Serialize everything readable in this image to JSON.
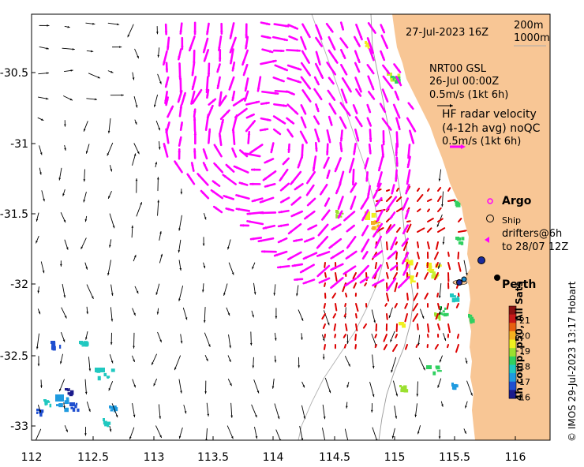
{
  "map": {
    "x_ticks": [
      "112",
      "112.5",
      "113",
      "113.5",
      "114",
      "114.5",
      "115",
      "115.5",
      "116"
    ],
    "y_ticks": [
      "-30.5",
      "-31",
      "-31.5",
      "-32",
      "-32.5",
      "-33"
    ],
    "xlim": [
      112,
      116.3
    ],
    "ylim": [
      -33.1,
      -30.1
    ],
    "land_color": "#f8c695",
    "hf_vector_color": "#ff00ff",
    "model_vector_color": "#000000",
    "coastal_vector_color": "#dd0000"
  },
  "legend": {
    "date": "27-Jul-2023 16Z",
    "depth_200": "200m",
    "depth_1000": "1000m",
    "model_name": "NRT00 GSL",
    "model_date": "26-Jul 00:00Z",
    "model_scale": "0.5m/s (1kt 6h)",
    "hf_title_1": "HF radar velocity",
    "hf_title_2": "(4-12h avg) noQC",
    "hf_scale": "0.5m/s (1kt 6h)",
    "argo": "Argo",
    "ship": "Ship",
    "drifters_1": "drifters@6h",
    "drifters_2": "to 28/07 12Z",
    "city": "Perth"
  },
  "colorbar": {
    "ticks": [
      "21",
      "20",
      "19",
      "18",
      "17",
      "16"
    ],
    "label": "4h comp, p50, All Sats",
    "colors": [
      "#1a1a8c",
      "#1f4fd0",
      "#1f9be0",
      "#20c8c0",
      "#30d060",
      "#9be030",
      "#f0f020",
      "#f5b020",
      "#e86010",
      "#c81818",
      "#8c1010"
    ]
  },
  "credit": "© IMOS 29-Jul-2023 13:17 Hobart"
}
